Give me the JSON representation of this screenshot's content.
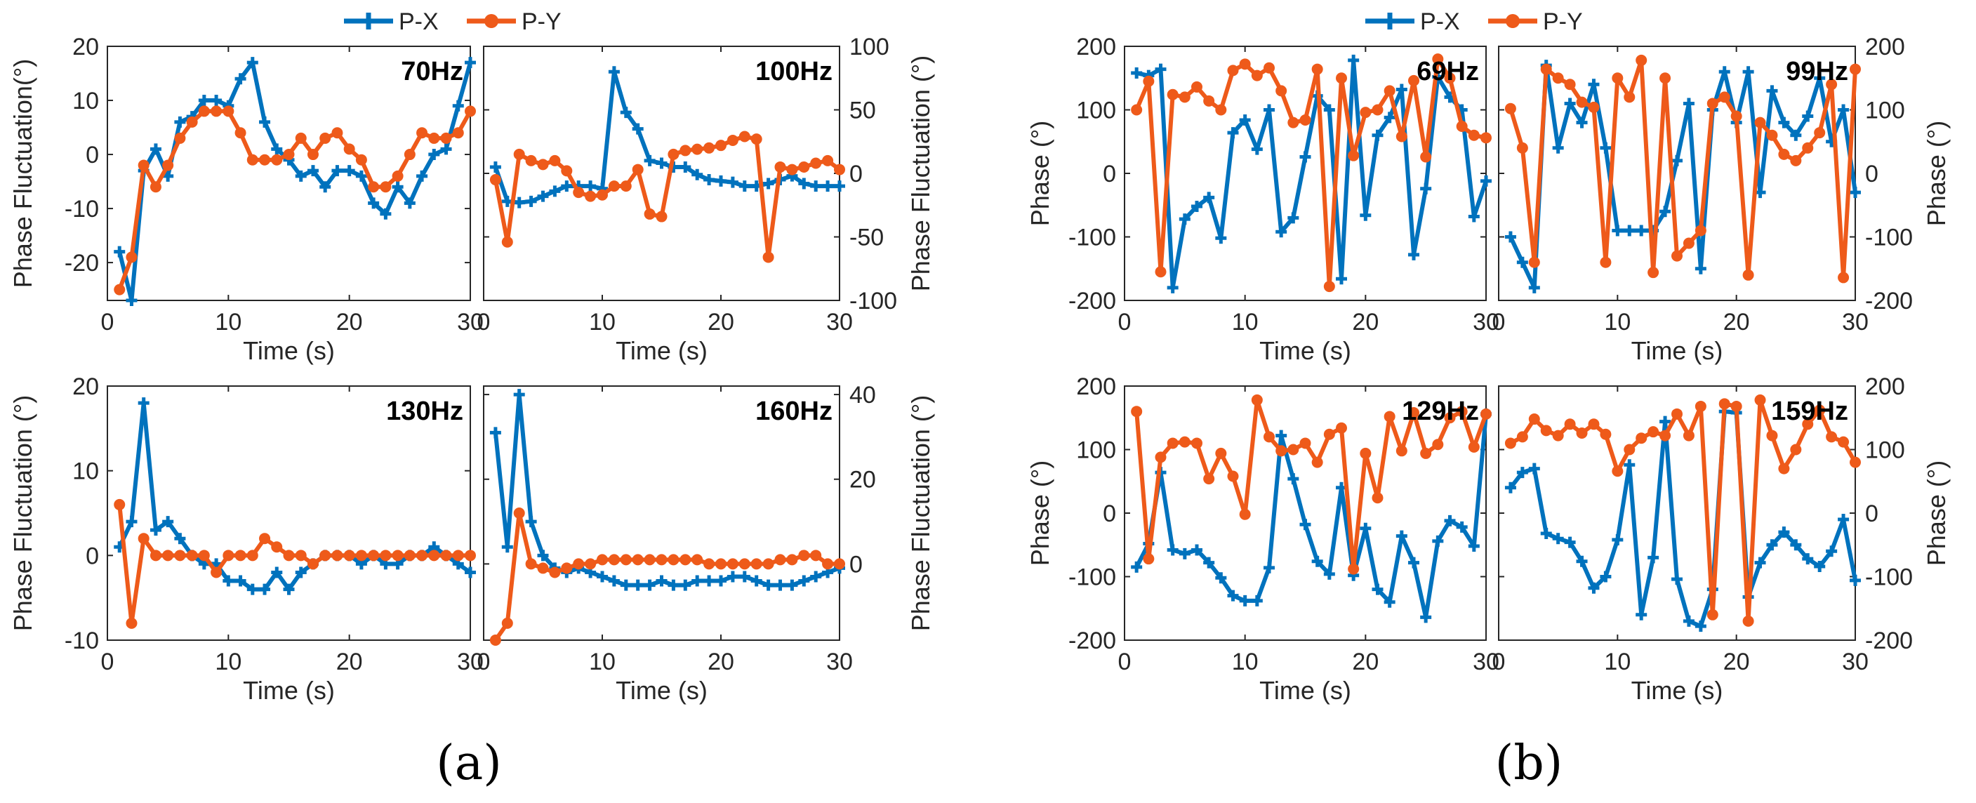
{
  "figure": {
    "legend": [
      {
        "name": "P-X",
        "color": "#0072BD",
        "marker": "plus"
      },
      {
        "name": "P-Y",
        "color": "#EE5A1A",
        "marker": "circle"
      }
    ],
    "panel_labels": [
      "(a)",
      "(b)"
    ]
  },
  "chart_data": [
    {
      "type": "line",
      "panel": "a",
      "title": "70Hz",
      "xlabel": "Time (s)",
      "ylabel_left": "Phase Fluctuation(°)",
      "ylabel_right": "",
      "xlim": [
        0,
        30
      ],
      "ylim": [
        -27,
        20
      ],
      "xticks": [
        "0",
        "10",
        "20",
        "30"
      ],
      "yticks": [
        -20,
        -10,
        0,
        10,
        20
      ],
      "ytick_labels": [
        "-20",
        "-10",
        "0",
        "10",
        "20"
      ],
      "tick_side": "left",
      "series": [
        {
          "name": "P-X",
          "values": [
            -18,
            -27,
            -3,
            1,
            -4,
            6,
            7,
            10,
            10,
            9,
            14,
            17,
            6,
            1,
            -1,
            -4,
            -3,
            -6,
            -3,
            -3,
            -4,
            -9,
            -11,
            -6,
            -9,
            -4,
            0,
            1,
            9,
            17
          ]
        },
        {
          "name": "P-Y",
          "values": [
            -25,
            -19,
            -2,
            -6,
            -2,
            3,
            6,
            8,
            8,
            8,
            4,
            -1,
            -1,
            -1,
            0,
            3,
            0,
            3,
            4,
            1,
            -1,
            -6,
            -6,
            -4,
            0,
            4,
            3,
            3,
            4,
            8
          ]
        }
      ]
    },
    {
      "type": "line",
      "panel": "a",
      "title": "100Hz",
      "xlabel": "Time (s)",
      "ylabel_left": "",
      "ylabel_right": "Phase Fluctuation (°)",
      "xlim": [
        0,
        30
      ],
      "ylim": [
        -100,
        100
      ],
      "xticks": [
        "0",
        "10",
        "20",
        "30"
      ],
      "yticks": [
        -100,
        -50,
        0,
        50,
        100
      ],
      "ytick_labels": [
        "-100",
        "-50",
        "0",
        "50",
        "100"
      ],
      "tick_side": "right",
      "series": [
        {
          "name": "P-X",
          "values": [
            5,
            -22,
            -23,
            -22,
            -18,
            -14,
            -10,
            -10,
            -10,
            -12,
            80,
            48,
            35,
            10,
            8,
            5,
            5,
            -1,
            -5,
            -6,
            -7,
            -10,
            -10,
            -8,
            -5,
            -2,
            -8,
            -10,
            -10,
            -10
          ]
        },
        {
          "name": "P-Y",
          "values": [
            -5,
            -54,
            15,
            10,
            7,
            10,
            2,
            -15,
            -18,
            -17,
            -10,
            -10,
            3,
            -32,
            -34,
            15,
            18,
            19,
            20,
            22,
            26,
            29,
            27,
            -66,
            5,
            3,
            5,
            8,
            10,
            3
          ]
        }
      ]
    },
    {
      "type": "line",
      "panel": "a",
      "title": "130Hz",
      "xlabel": "Time (s)",
      "ylabel_left": "Phase Fluctuation (°)",
      "ylabel_right": "",
      "xlim": [
        0,
        30
      ],
      "ylim": [
        -10,
        20
      ],
      "xticks": [
        "0",
        "10",
        "20",
        "30"
      ],
      "yticks": [
        -10,
        0,
        10,
        20
      ],
      "ytick_labels": [
        "-10",
        "0",
        "10",
        "20"
      ],
      "tick_side": "left",
      "series": [
        {
          "name": "P-X",
          "values": [
            1,
            4,
            18,
            3,
            4,
            2,
            0,
            -1,
            -1,
            -3,
            -3,
            -4,
            -4,
            -2,
            -4,
            -2,
            -1,
            0,
            0,
            0,
            -1,
            0,
            -1,
            -1,
            0,
            0,
            1,
            0,
            -1,
            -2
          ]
        },
        {
          "name": "P-Y",
          "values": [
            6,
            -8,
            2,
            0,
            0,
            0,
            0,
            0,
            -2,
            0,
            0,
            0,
            2,
            1,
            0,
            0,
            -1,
            0,
            0,
            0,
            0,
            0,
            0,
            0,
            0,
            0,
            0,
            0,
            0,
            0
          ]
        }
      ]
    },
    {
      "type": "line",
      "panel": "a",
      "title": "160Hz",
      "xlabel": "Time (s)",
      "ylabel_left": "",
      "ylabel_right": "Phase Fluctuation (°)",
      "xlim": [
        0,
        30
      ],
      "ylim": [
        -18,
        42
      ],
      "xticks": [
        "0",
        "10",
        "20",
        "30"
      ],
      "yticks": [
        0,
        20,
        40
      ],
      "ytick_labels": [
        "0",
        "20",
        "40"
      ],
      "tick_side": "right",
      "series": [
        {
          "name": "P-X",
          "values": [
            31,
            4,
            40,
            10,
            2,
            -1,
            -2,
            -1,
            -2,
            -3,
            -4,
            -5,
            -5,
            -5,
            -4,
            -5,
            -5,
            -4,
            -4,
            -4,
            -3,
            -3,
            -4,
            -5,
            -5,
            -5,
            -4,
            -3,
            -2,
            -1
          ]
        },
        {
          "name": "P-Y",
          "values": [
            -18,
            -14,
            12,
            0,
            -1,
            -2,
            -1,
            0,
            0,
            1,
            1,
            1,
            1,
            1,
            1,
            1,
            1,
            1,
            0,
            0,
            0,
            0,
            0,
            0,
            1,
            1,
            2,
            2,
            0,
            0
          ]
        }
      ]
    },
    {
      "type": "line",
      "panel": "b",
      "title": "69Hz",
      "xlabel": "Time (s)",
      "ylabel_left": "Phase (°)",
      "ylabel_right": "",
      "xlim": [
        0,
        30
      ],
      "ylim": [
        -200,
        200
      ],
      "xticks": [
        "0",
        "10",
        "20",
        "30"
      ],
      "yticks": [
        -200,
        -100,
        0,
        100,
        200
      ],
      "ytick_labels": [
        "-200",
        "-100",
        "0",
        "100",
        "200"
      ],
      "tick_side": "left",
      "series": [
        {
          "name": "P-X",
          "values": [
            158,
            154,
            164,
            -180,
            -72,
            -52,
            -38,
            -102,
            64,
            84,
            38,
            100,
            -92,
            -70,
            26,
            122,
            100,
            -166,
            178,
            -66,
            60,
            88,
            132,
            -128,
            -24,
            152,
            120,
            100,
            -68,
            -12
          ]
        },
        {
          "name": "P-Y",
          "values": [
            100,
            145,
            -155,
            124,
            120,
            136,
            114,
            100,
            162,
            172,
            154,
            166,
            130,
            80,
            84,
            164,
            -178,
            150,
            28,
            96,
            100,
            130,
            58,
            146,
            26,
            180,
            150,
            74,
            60,
            56
          ]
        }
      ]
    },
    {
      "type": "line",
      "panel": "b",
      "title": "99Hz",
      "xlabel": "Time (s)",
      "ylabel_left": "",
      "ylabel_right": "Phase (°)",
      "xlim": [
        0,
        30
      ],
      "ylim": [
        -200,
        200
      ],
      "xticks": [
        "0",
        "10",
        "20",
        "30"
      ],
      "yticks": [
        -200,
        -100,
        0,
        100,
        200
      ],
      "ytick_labels": [
        "-200",
        "-100",
        "0",
        "100",
        "200"
      ],
      "tick_side": "right",
      "series": [
        {
          "name": "P-X",
          "values": [
            -100,
            -140,
            -180,
            170,
            40,
            110,
            80,
            140,
            40,
            -90,
            -90,
            -90,
            -90,
            -60,
            20,
            110,
            -150,
            100,
            160,
            80,
            160,
            -30,
            130,
            80,
            60,
            90,
            150,
            50,
            100,
            -30
          ]
        },
        {
          "name": "P-Y",
          "values": [
            102,
            40,
            -140,
            164,
            150,
            140,
            112,
            104,
            -140,
            150,
            120,
            178,
            -156,
            150,
            -130,
            -110,
            -90,
            110,
            120,
            90,
            -160,
            80,
            60,
            30,
            20,
            40,
            64,
            140,
            -164,
            164
          ]
        }
      ]
    },
    {
      "type": "line",
      "panel": "b",
      "title": "129Hz",
      "xlabel": "Time (s)",
      "ylabel_left": "Phase (°)",
      "ylabel_right": "",
      "xlim": [
        0,
        30
      ],
      "ylim": [
        -200,
        200
      ],
      "xticks": [
        "0",
        "10",
        "20",
        "30"
      ],
      "yticks": [
        -200,
        -100,
        0,
        100,
        200
      ],
      "ytick_labels": [
        "-200",
        "-100",
        "0",
        "100",
        "200"
      ],
      "tick_side": "left",
      "series": [
        {
          "name": "P-X",
          "values": [
            -85,
            -48,
            64,
            -58,
            -64,
            -58,
            -78,
            -102,
            -130,
            -138,
            -138,
            -86,
            122,
            54,
            -18,
            -76,
            -96,
            40,
            -98,
            -24,
            -120,
            -140,
            -36,
            -78,
            -164,
            -44,
            -12,
            -22,
            -52,
            156
          ]
        },
        {
          "name": "P-Y",
          "values": [
            160,
            -72,
            88,
            110,
            112,
            110,
            54,
            94,
            58,
            -2,
            178,
            120,
            98,
            100,
            110,
            80,
            124,
            134,
            -88,
            94,
            24,
            152,
            98,
            158,
            94,
            108,
            150,
            160,
            104,
            156
          ]
        }
      ]
    },
    {
      "type": "line",
      "panel": "b",
      "title": "159Hz",
      "xlabel": "Time (s)",
      "ylabel_left": "",
      "ylabel_right": "Phase (°)",
      "xlim": [
        0,
        30
      ],
      "ylim": [
        -200,
        200
      ],
      "xticks": [
        "0",
        "10",
        "20",
        "30"
      ],
      "yticks": [
        -200,
        -100,
        0,
        100,
        200
      ],
      "ytick_labels": [
        "-200",
        "-100",
        "0",
        "100",
        "200"
      ],
      "tick_side": "right",
      "series": [
        {
          "name": "P-X",
          "values": [
            40,
            64,
            70,
            -32,
            -40,
            -46,
            -76,
            -118,
            -100,
            -42,
            76,
            -160,
            -70,
            144,
            -104,
            -170,
            -178,
            -120,
            160,
            158,
            -132,
            -78,
            -50,
            -30,
            -50,
            -72,
            -84,
            -60,
            -10,
            -106
          ]
        },
        {
          "name": "P-Y",
          "values": [
            110,
            120,
            148,
            130,
            122,
            140,
            126,
            140,
            124,
            66,
            100,
            118,
            128,
            122,
            156,
            122,
            168,
            -160,
            172,
            168,
            -170,
            178,
            122,
            70,
            100,
            140,
            162,
            120,
            112,
            80
          ]
        }
      ]
    }
  ]
}
